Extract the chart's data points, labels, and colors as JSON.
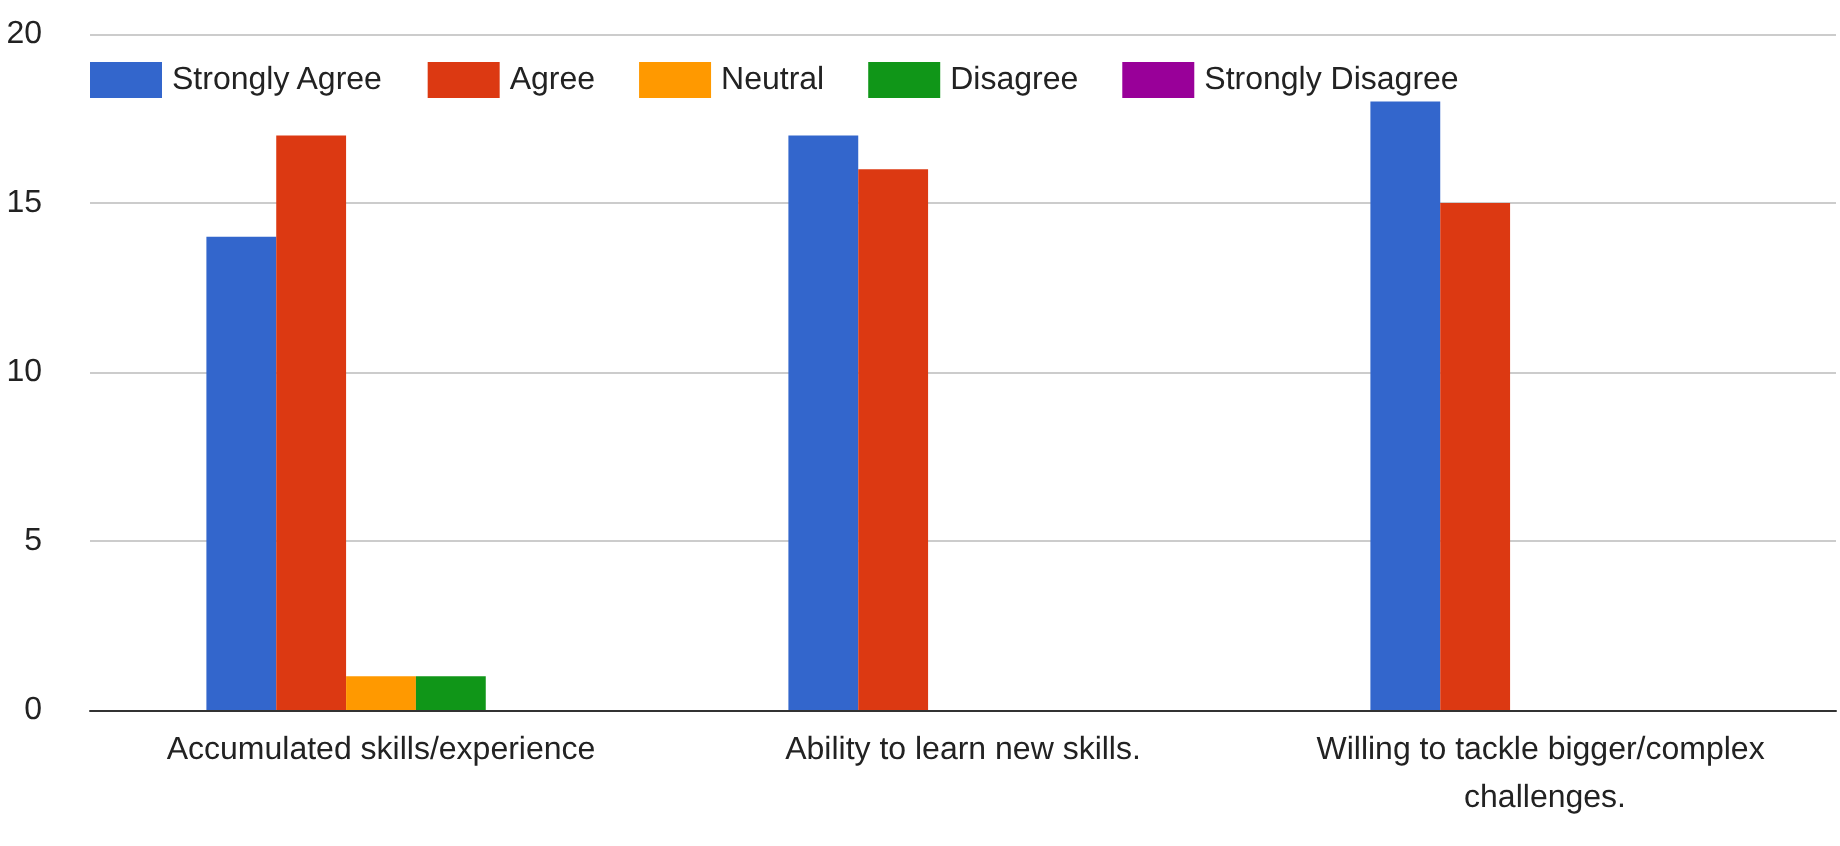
{
  "chart_data": {
    "type": "bar",
    "categories": [
      "Accumulated skills/experience",
      "Ability to learn new skills.",
      "Willing to tackle bigger/complex challenges."
    ],
    "series": [
      {
        "name": "Strongly Agree",
        "color": "#3366cc",
        "values": [
          14,
          17,
          18
        ]
      },
      {
        "name": "Agree",
        "color": "#dc3912",
        "values": [
          17,
          16,
          15
        ]
      },
      {
        "name": "Neutral",
        "color": "#ff9900",
        "values": [
          1,
          0,
          0
        ]
      },
      {
        "name": "Disagree",
        "color": "#109618",
        "values": [
          1,
          0,
          0
        ]
      },
      {
        "name": "Strongly Disagree",
        "color": "#990099",
        "values": [
          0,
          0,
          0
        ]
      }
    ],
    "ylim": [
      0,
      20
    ],
    "yticks": [
      0,
      5,
      10,
      15,
      20
    ],
    "grid": "y",
    "legend": "top left"
  }
}
